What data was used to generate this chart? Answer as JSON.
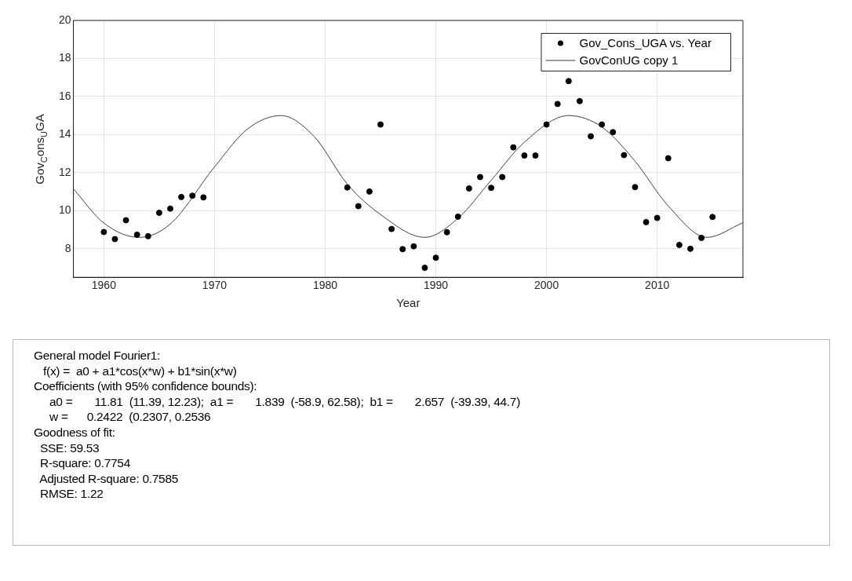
{
  "chart_data": {
    "type": "scatter",
    "xlabel": "Year",
    "ylabel": "Gov$_{C}$ons$_{U}$GA",
    "xlim": [
      1957.25,
      2017.75
    ],
    "xticks": [
      1960,
      1970,
      1980,
      1990,
      2000,
      2010
    ],
    "ylim": [
      6.5,
      20
    ],
    "yticks": [
      8,
      10,
      12,
      14,
      16,
      18,
      20
    ],
    "grid": true,
    "legend": "top right",
    "marker": "circle",
    "series": [
      {
        "name": "Gov_Cons_UGA vs. Year",
        "color": "#000000",
        "x": [
          1960,
          1961,
          1962,
          1963,
          1964,
          1965,
          1966,
          1967,
          1968,
          1969,
          1982,
          1983,
          1984,
          1985,
          1986,
          1987,
          1988,
          1989,
          1990,
          1991,
          1992,
          1993,
          1994,
          1995,
          1996,
          1997,
          1998,
          1999,
          2000,
          2001,
          2002,
          2003,
          2004,
          2005,
          2006,
          2007,
          2008,
          2009,
          2010,
          2011,
          2012,
          2013,
          2014,
          2015
        ],
        "values": [
          8.88,
          8.51,
          9.5,
          8.74,
          8.66,
          9.89,
          10.11,
          10.72,
          10.79,
          10.7,
          11.22,
          10.24,
          11.01,
          14.53,
          9.04,
          7.98,
          8.13,
          7.0,
          7.53,
          8.87,
          9.69,
          11.17,
          11.77,
          11.2,
          11.77,
          13.33,
          12.9,
          12.9,
          14.53,
          15.61,
          16.81,
          15.76,
          13.91,
          14.53,
          14.13,
          12.92,
          11.24,
          9.4,
          9.62,
          12.76,
          8.2,
          8.0,
          8.57,
          9.67
        ]
      },
      {
        "name": "GovConUG copy 1",
        "type": "line",
        "marker": "none",
        "color": "#404040",
        "x": [
          1957.25,
          1960,
          1963.2,
          1966,
          1970,
          1973,
          1976,
          1979,
          1982,
          1985,
          1989,
          1992,
          1995,
          1998,
          2002,
          2005,
          2008,
          2011,
          2014.5,
          2017.75
        ],
        "values": [
          11.15,
          9.35,
          8.6,
          9.3,
          12.3,
          14.3,
          15.0,
          13.9,
          11.4,
          9.8,
          8.6,
          9.6,
          11.6,
          13.6,
          15.0,
          14.4,
          12.6,
          10.25,
          8.6,
          9.37
        ]
      }
    ],
    "annotations": [
      "General model Fourier1:",
      "   f(x) =  a0 + a1*cos(x*w) + b1*sin(x*w)",
      "Coefficients (with 95% confidence bounds):",
      "     a0 =       11.81  (11.39, 12.23);  a1 =       1.839  (-58.9, 62.58);  b1 =       2.657  (-39.39, 44.7)",
      "     w =      0.2422  (0.2307, 0.2536",
      "Goodness of fit:",
      "  SSE: 59.53",
      "  R-square: 0.7754",
      "  Adjusted R-square: 0.7585",
      "  RMSE: 1.22"
    ]
  }
}
